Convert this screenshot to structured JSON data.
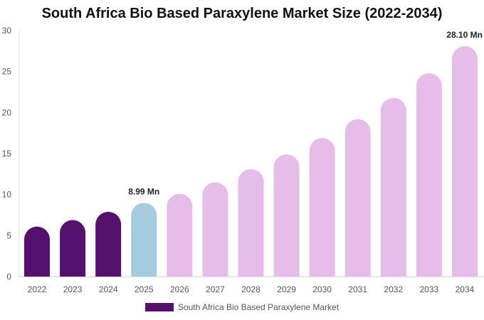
{
  "chart_data": {
    "type": "bar",
    "title": "South Africa Bio Based Paraxylene Market Size (2022-2034)",
    "categories": [
      "2022",
      "2023",
      "2024",
      "2025",
      "2026",
      "2027",
      "2028",
      "2029",
      "2030",
      "2031",
      "2032",
      "2033",
      "2034"
    ],
    "series": [
      {
        "name": "South Africa Bio Based Paraxylene Market",
        "values": [
          6.1,
          6.9,
          7.9,
          8.99,
          10.1,
          11.5,
          13.1,
          14.9,
          16.9,
          19.2,
          21.8,
          24.8,
          28.1
        ]
      }
    ],
    "data_labels": [
      {
        "category": "2025",
        "text": "8.99 Mn"
      },
      {
        "category": "2034",
        "text": "28.10 Mn"
      }
    ],
    "yticks": [
      0,
      5,
      10,
      15,
      20,
      25,
      30
    ],
    "ylim": [
      0,
      30
    ],
    "xlabel": "",
    "ylabel": "",
    "grid": false,
    "legend_position": "bottom",
    "colors": {
      "historical": "#54126e",
      "base_year": "#a6cbdf",
      "forecast": "#e6bde9",
      "legend": "#54126e"
    },
    "historical_count": 3,
    "base_year_index": 3
  }
}
